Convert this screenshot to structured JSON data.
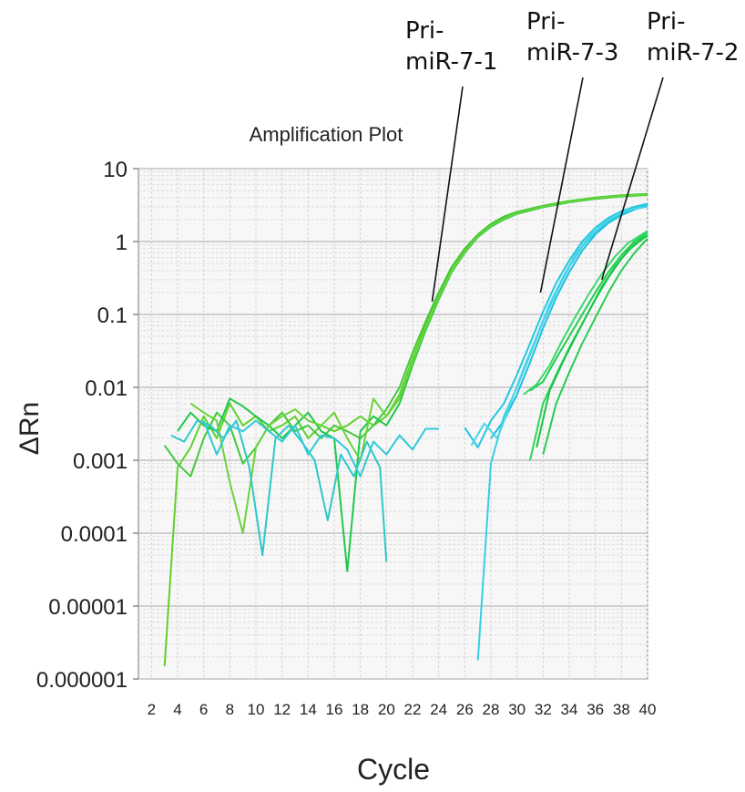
{
  "chart_data": {
    "type": "line",
    "title": "Amplification Plot",
    "xlabel": "Cycle",
    "ylabel": "ΔRn",
    "yscale": "log",
    "xlim": [
      1,
      40
    ],
    "ylim": [
      1e-06,
      10
    ],
    "x_ticks": [
      2,
      4,
      6,
      8,
      10,
      12,
      14,
      16,
      18,
      20,
      22,
      24,
      26,
      28,
      30,
      32,
      34,
      36,
      38,
      40
    ],
    "x_tick_labels": [
      "2",
      "4",
      "6",
      "8",
      "10",
      "12",
      "14",
      "16",
      "18",
      "20",
      "22",
      "24",
      "26",
      "28",
      "30",
      "32",
      "34",
      "36",
      "38",
      "40"
    ],
    "y_ticks": [
      10,
      1,
      0.1,
      0.01,
      0.001,
      0.0001,
      1e-05,
      1e-06
    ],
    "y_tick_labels": [
      "10",
      "1",
      "0.1",
      "0.01",
      "0.001",
      "0.0001",
      "0.00001",
      "0.000001"
    ],
    "grid": true,
    "annotations": [
      {
        "lines": [
          "Pri-",
          "miR-7-1"
        ],
        "points_to": [
          23.5,
          0.15
        ]
      },
      {
        "lines": [
          "Pri-",
          "miR-7-3"
        ],
        "points_to": [
          31.8,
          0.2
        ]
      },
      {
        "lines": [
          "Pri-",
          "miR-7-2"
        ],
        "points_to": [
          36.5,
          0.3
        ]
      }
    ],
    "series": [
      {
        "color": "#5fd12b",
        "points": [
          [
            3,
            1.5e-06
          ],
          [
            4,
            0.0008
          ],
          [
            5,
            0.0015
          ],
          [
            6,
            0.004
          ],
          [
            7,
            0.002
          ],
          [
            8,
            0.006
          ],
          [
            9,
            0.003
          ],
          [
            10,
            0.004
          ],
          [
            11,
            0.0025
          ],
          [
            12,
            0.003
          ],
          [
            13,
            0.004
          ],
          [
            14,
            0.002
          ],
          [
            15,
            0.003
          ],
          [
            16,
            0.0025
          ],
          [
            17,
            0.003
          ],
          [
            18,
            0.004
          ],
          [
            19,
            0.003
          ],
          [
            20,
            0.004
          ],
          [
            21,
            0.008
          ],
          [
            22,
            0.025
          ],
          [
            23,
            0.07
          ],
          [
            24,
            0.18
          ],
          [
            25,
            0.4
          ],
          [
            26,
            0.75
          ],
          [
            27,
            1.2
          ],
          [
            28,
            1.7
          ],
          [
            29,
            2.1
          ],
          [
            30,
            2.5
          ],
          [
            32,
            3.0
          ],
          [
            34,
            3.5
          ],
          [
            36,
            3.9
          ],
          [
            38,
            4.2
          ],
          [
            40,
            4.4
          ]
        ]
      },
      {
        "color": "#42c83a",
        "points": [
          [
            3,
            0.0016
          ],
          [
            4,
            0.0009
          ],
          [
            5,
            0.0006
          ],
          [
            6,
            0.002
          ],
          [
            7,
            0.0045
          ],
          [
            8,
            0.003
          ],
          [
            9,
            0.0009
          ],
          [
            10,
            0.0015
          ],
          [
            11,
            0.003
          ],
          [
            12,
            0.0045
          ],
          [
            13,
            0.0025
          ],
          [
            14,
            0.003
          ],
          [
            15,
            0.002
          ],
          [
            16,
            0.003
          ],
          [
            17,
            0.0025
          ],
          [
            18,
            0.002
          ],
          [
            19,
            0.003
          ],
          [
            20,
            0.005
          ],
          [
            21,
            0.01
          ],
          [
            22,
            0.03
          ],
          [
            23,
            0.08
          ],
          [
            24,
            0.2
          ],
          [
            25,
            0.45
          ],
          [
            26,
            0.8
          ],
          [
            27,
            1.25
          ],
          [
            28,
            1.75
          ],
          [
            29,
            2.2
          ],
          [
            30,
            2.55
          ],
          [
            32,
            3.1
          ],
          [
            34,
            3.6
          ],
          [
            36,
            4.0
          ],
          [
            38,
            4.3
          ],
          [
            40,
            4.5
          ]
        ]
      },
      {
        "color": "#1fc84a",
        "points": [
          [
            4,
            0.0025
          ],
          [
            5,
            0.0045
          ],
          [
            6,
            0.003
          ],
          [
            7,
            0.0025
          ],
          [
            8,
            0.007
          ],
          [
            9,
            0.0055
          ],
          [
            10,
            0.004
          ],
          [
            11,
            0.003
          ],
          [
            12,
            0.002
          ],
          [
            13,
            0.003
          ],
          [
            14,
            0.0045
          ],
          [
            15,
            0.0025
          ],
          [
            16,
            0.002
          ],
          [
            17,
            3e-05
          ],
          [
            18,
            0.0025
          ],
          [
            19,
            0.004
          ],
          [
            20,
            0.003
          ],
          [
            21,
            0.006
          ],
          [
            22,
            0.02
          ],
          [
            23,
            0.06
          ],
          [
            24,
            0.16
          ],
          [
            25,
            0.38
          ],
          [
            26,
            0.7
          ],
          [
            27,
            1.15
          ],
          [
            28,
            1.6
          ],
          [
            29,
            2.0
          ],
          [
            30,
            2.4
          ],
          [
            32,
            2.95
          ],
          [
            34,
            3.45
          ],
          [
            36,
            3.85
          ],
          [
            38,
            4.15
          ],
          [
            40,
            4.35
          ]
        ]
      },
      {
        "color": "#6ad438",
        "points": [
          [
            5,
            0.006
          ],
          [
            6,
            0.0045
          ],
          [
            7,
            0.0035
          ],
          [
            8,
            0.0005
          ],
          [
            9,
            0.0001
          ],
          [
            10,
            0.0015
          ],
          [
            11,
            0.003
          ],
          [
            12,
            0.004
          ],
          [
            13,
            0.005
          ],
          [
            14,
            0.0035
          ],
          [
            15,
            0.003
          ],
          [
            16,
            0.0045
          ],
          [
            17,
            0.002
          ],
          [
            18,
            0.001
          ],
          [
            19,
            0.007
          ],
          [
            20,
            0.004
          ],
          [
            21,
            0.007
          ],
          [
            22,
            0.022
          ],
          [
            23,
            0.065
          ],
          [
            24,
            0.17
          ],
          [
            25,
            0.39
          ],
          [
            26,
            0.72
          ],
          [
            27,
            1.18
          ],
          [
            28,
            1.65
          ],
          [
            29,
            2.05
          ],
          [
            30,
            2.45
          ],
          [
            32,
            3.0
          ],
          [
            34,
            3.5
          ],
          [
            36,
            3.9
          ],
          [
            38,
            4.2
          ],
          [
            40,
            4.4
          ]
        ]
      },
      {
        "color": "#2ec8c8",
        "points": [
          [
            3.5,
            0.0022
          ],
          [
            4.5,
            0.0018
          ],
          [
            5.5,
            0.0035
          ],
          [
            6.5,
            0.003
          ],
          [
            7.5,
            0.002
          ],
          [
            8.5,
            0.0035
          ],
          [
            9.5,
            0.0008
          ],
          [
            10.5,
            5e-05
          ],
          [
            11.5,
            0.002
          ],
          [
            12.5,
            0.003
          ],
          [
            13.5,
            0.0018
          ],
          [
            14.5,
            0.001
          ],
          [
            15.5,
            0.00015
          ],
          [
            16.5,
            0.0012
          ],
          [
            17.5,
            0.0006
          ],
          [
            18.5,
            0.0018
          ],
          [
            19.5,
            0.0008
          ],
          [
            20,
            4e-05
          ]
        ]
      },
      {
        "color": "#31c9d8",
        "points": [
          [
            6,
            0.0035
          ],
          [
            7,
            0.0012
          ],
          [
            8,
            0.003
          ],
          [
            9,
            0.0025
          ],
          [
            10,
            0.0035
          ],
          [
            11,
            0.0025
          ],
          [
            12,
            0.0018
          ],
          [
            13,
            0.003
          ],
          [
            14,
            0.0012
          ],
          [
            15,
            0.0022
          ],
          [
            16,
            0.002
          ],
          [
            17,
            0.0014
          ],
          [
            18,
            0.0006
          ],
          [
            19,
            0.0018
          ],
          [
            20,
            0.0012
          ],
          [
            21,
            0.0022
          ],
          [
            22,
            0.0014
          ],
          [
            23,
            0.0027
          ],
          [
            24,
            0.0027
          ]
        ]
      },
      {
        "color": "#23c6e0",
        "points": [
          [
            26,
            0.0028
          ],
          [
            27,
            0.0015
          ],
          [
            28,
            0.0035
          ],
          [
            29,
            0.006
          ],
          [
            30,
            0.015
          ],
          [
            31,
            0.04
          ],
          [
            32,
            0.11
          ],
          [
            33,
            0.27
          ],
          [
            34,
            0.55
          ],
          [
            35,
            1.0
          ],
          [
            36,
            1.55
          ],
          [
            37,
            2.1
          ],
          [
            38,
            2.6
          ],
          [
            39,
            3.0
          ],
          [
            40,
            3.3
          ]
        ]
      },
      {
        "color": "#35cfe3",
        "points": [
          [
            27,
            1.8e-06
          ],
          [
            28,
            0.0009
          ],
          [
            29,
            0.004
          ],
          [
            30,
            0.01
          ],
          [
            31,
            0.028
          ],
          [
            32,
            0.08
          ],
          [
            33,
            0.2
          ],
          [
            34,
            0.45
          ],
          [
            35,
            0.85
          ],
          [
            36,
            1.35
          ],
          [
            37,
            1.9
          ],
          [
            38,
            2.4
          ],
          [
            39,
            2.85
          ],
          [
            40,
            3.2
          ]
        ]
      },
      {
        "color": "#1fbfe0",
        "points": [
          [
            28,
            0.002
          ],
          [
            29,
            0.0035
          ],
          [
            30,
            0.008
          ],
          [
            31,
            0.022
          ],
          [
            32,
            0.065
          ],
          [
            33,
            0.17
          ],
          [
            34,
            0.38
          ],
          [
            35,
            0.75
          ],
          [
            36,
            1.25
          ],
          [
            37,
            1.8
          ],
          [
            38,
            2.3
          ],
          [
            39,
            2.75
          ],
          [
            40,
            3.1
          ]
        ]
      },
      {
        "color": "#49d6ea",
        "points": [
          [
            26.5,
            0.0016
          ],
          [
            27.5,
            0.0032
          ],
          [
            28.5,
            0.002
          ],
          [
            29.5,
            0.006
          ],
          [
            30.5,
            0.018
          ],
          [
            31.5,
            0.05
          ],
          [
            32.5,
            0.14
          ],
          [
            33.5,
            0.32
          ],
          [
            34.5,
            0.68
          ],
          [
            35.5,
            1.15
          ],
          [
            36.5,
            1.7
          ],
          [
            37.5,
            2.25
          ],
          [
            38.5,
            2.7
          ],
          [
            40,
            3.0
          ]
        ]
      },
      {
        "color": "#1ecf4e",
        "points": [
          [
            31,
            0.009
          ],
          [
            32,
            0.012
          ],
          [
            33,
            0.025
          ],
          [
            34,
            0.05
          ],
          [
            35,
            0.1
          ],
          [
            36,
            0.2
          ],
          [
            37,
            0.38
          ],
          [
            38,
            0.65
          ],
          [
            39,
            1.0
          ],
          [
            40,
            1.35
          ]
        ]
      },
      {
        "color": "#2ad65a",
        "points": [
          [
            31,
            0.001
          ],
          [
            32,
            0.006
          ],
          [
            33,
            0.015
          ],
          [
            34,
            0.035
          ],
          [
            35,
            0.075
          ],
          [
            36,
            0.16
          ],
          [
            37,
            0.32
          ],
          [
            38,
            0.58
          ],
          [
            39,
            0.92
          ],
          [
            40,
            1.3
          ]
        ]
      },
      {
        "color": "#19c545",
        "points": [
          [
            31.5,
            0.0015
          ],
          [
            32.5,
            0.009
          ],
          [
            33.5,
            0.022
          ],
          [
            34.5,
            0.05
          ],
          [
            35.5,
            0.11
          ],
          [
            36.5,
            0.24
          ],
          [
            37.5,
            0.45
          ],
          [
            38.5,
            0.75
          ],
          [
            39.5,
            1.05
          ],
          [
            40,
            1.2
          ]
        ]
      },
      {
        "color": "#3ad86a",
        "points": [
          [
            30.5,
            0.008
          ],
          [
            31.5,
            0.011
          ],
          [
            32.5,
            0.02
          ],
          [
            33.5,
            0.045
          ],
          [
            34.5,
            0.095
          ],
          [
            35.5,
            0.19
          ],
          [
            36.5,
            0.36
          ],
          [
            37.5,
            0.62
          ],
          [
            38.5,
            0.95
          ],
          [
            40,
            1.4
          ]
        ]
      },
      {
        "color": "#27cc52",
        "points": [
          [
            32,
            0.0012
          ],
          [
            33,
            0.006
          ],
          [
            34,
            0.016
          ],
          [
            35,
            0.04
          ],
          [
            36,
            0.09
          ],
          [
            37,
            0.2
          ],
          [
            38,
            0.4
          ],
          [
            39,
            0.7
          ],
          [
            40,
            1.1
          ]
        ]
      }
    ]
  }
}
